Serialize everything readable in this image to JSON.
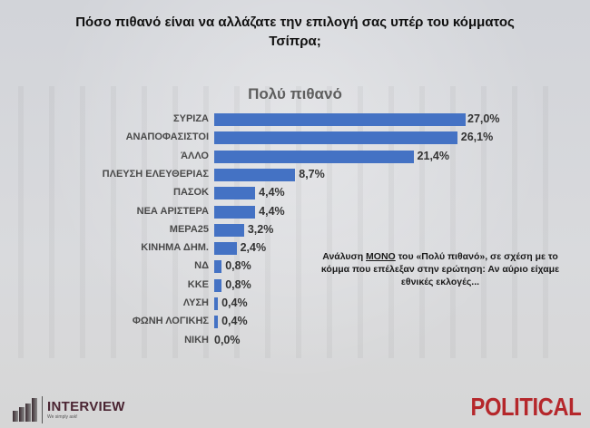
{
  "header": {
    "title_line1": "Πόσο πιθανό είναι να αλλάζατε την επιλογή σας υπέρ του κόμματος",
    "title_line2": "Τσίπρα;",
    "subtitle": "Πολύ πιθανό"
  },
  "note": {
    "prefix": "Ανάλυση ",
    "emphasis": "ΜΟΝΟ",
    "suffix": " του «Πολύ πιθανό», σε σχέση με το κόμμα που επέλεξαν στην ερώτηση: Αν αύριο είχαμε εθνικές εκλογές..."
  },
  "logos": {
    "left_name": "INTERVIEW",
    "left_tagline": "We simply ask!",
    "right_name": "POLITICAL"
  },
  "colors": {
    "bar": "#4472c4",
    "political": "#b5272b",
    "interview": "#4a2432"
  },
  "chart_data": {
    "type": "bar",
    "orientation": "horizontal",
    "title": "Πόσο πιθανό είναι να αλλάζατε την επιλογή σας υπέρ του κόμματος Τσίπρα;",
    "subtitle": "Πολύ πιθανό",
    "xlabel": "",
    "ylabel": "",
    "grid": false,
    "legend": null,
    "categories": [
      "ΣΥΡΙΖΑ",
      "ΑΝΑΠΟΦΑΣΙΣΤΟΙ",
      "ΆΛΛΟ",
      "ΠΛΕΥΣΗ ΕΛΕΥΘΕΡΙΑΣ",
      "ΠΑΣΟΚ",
      "ΝΕΑ ΑΡΙΣΤΕΡΑ",
      "ΜΕΡΑ25",
      "ΚΙΝΗΜΑ ΔΗΜ.",
      "ΝΔ",
      "ΚΚΕ",
      "ΛΥΣΗ",
      "ΦΩΝΗ ΛΟΓΙΚΗΣ",
      "ΝΙΚΗ"
    ],
    "values": [
      27.0,
      26.1,
      21.4,
      8.7,
      4.4,
      4.4,
      3.2,
      2.4,
      0.8,
      0.8,
      0.4,
      0.4,
      0.0
    ],
    "value_labels": [
      "27,0%",
      "26,1%",
      "21,4%",
      "8,7%",
      "4,4%",
      "4,4%",
      "3,2%",
      "2,4%",
      "0,8%",
      "0,8%",
      "0,4%",
      "0,4%",
      "0,0%"
    ],
    "unit": "%",
    "xlim": [
      0,
      27
    ]
  }
}
